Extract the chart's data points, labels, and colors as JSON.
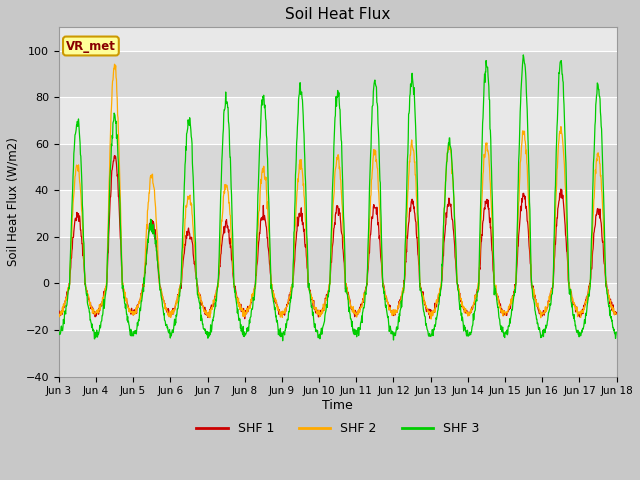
{
  "title": "Soil Heat Flux",
  "xlabel": "Time",
  "ylabel": "Soil Heat Flux (W/m2)",
  "ylim": [
    -40,
    110
  ],
  "yticks": [
    -40,
    -20,
    0,
    20,
    40,
    60,
    80,
    100
  ],
  "fig_bg": "#c8c8c8",
  "plot_bg": "#e8e8e8",
  "shf1_color": "#cc0000",
  "shf2_color": "#ffaa00",
  "shf3_color": "#00cc00",
  "legend_labels": [
    "SHF 1",
    "SHF 2",
    "SHF 3"
  ],
  "vr_met_text": "VR_met",
  "vr_met_bg": "#ffff99",
  "vr_met_border": "#cc9900",
  "n_days": 15,
  "points_per_day": 96,
  "day_amps_shf12": [
    30,
    55,
    27,
    22,
    25,
    29,
    30,
    32,
    33,
    35,
    35,
    35,
    38,
    39,
    32
  ],
  "day_amps_shf3": [
    70,
    72,
    25,
    70,
    80,
    80,
    84,
    82,
    86,
    89,
    60,
    94,
    97,
    95,
    85
  ],
  "night_shf12": -13,
  "night_shf3": -22,
  "grid_color": "#ffffff",
  "alt_band_color": "#d8d8d8"
}
